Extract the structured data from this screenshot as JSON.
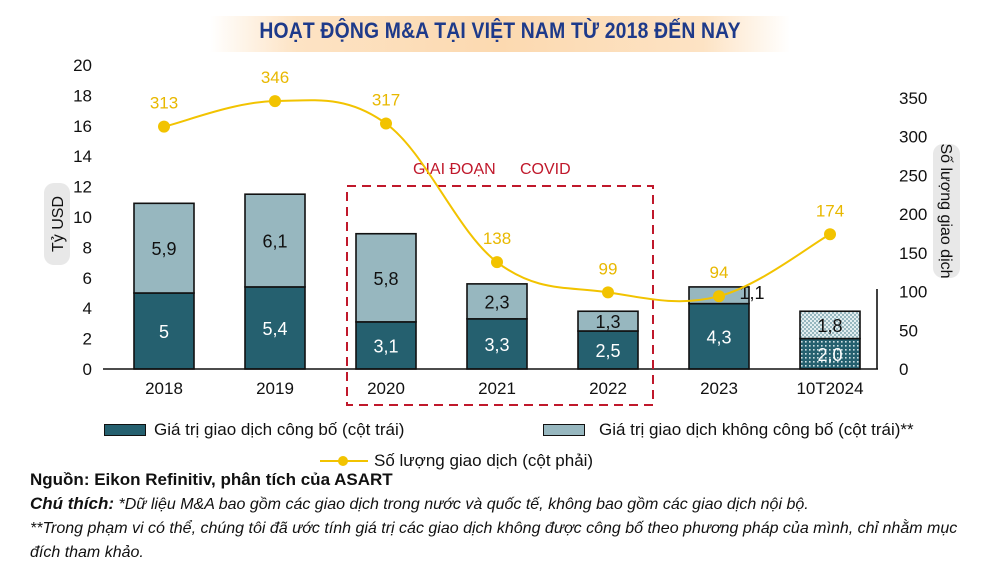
{
  "title": "HOẠT ĐỘNG M&A TẠI VIỆT NAM TỪ 2018 ĐẾN NAY",
  "annotation": {
    "word1": "GIAI ĐOẠN",
    "word2": "COVID"
  },
  "legend": {
    "disclosed": "Giá trị giao dịch công bố (cột trái)",
    "undisclosed": "Giá trị giao dịch không công bố (cột trái)**",
    "count": "Số lượng giao dịch (cột phải)"
  },
  "notes": {
    "source": "Nguồn: Eikon Refinitiv, phân tích của ASART",
    "note_label": "Chú thích:",
    "note1": " *Dữ liệu M&A bao gồm các giao dịch trong nước và quốc tế, không bao gồm các giao dịch nội bộ.",
    "note2": "**Trong phạm vi có thể, chúng tôi đã ước tính giá trị các giao dịch không được công bố theo phương pháp của mình, chỉ nhằm mục đích tham khảo."
  },
  "colors": {
    "disclosed": "#25606f",
    "undisclosed": "#97b7bf",
    "line": "#f2c300",
    "covid_box": "#c0182b",
    "title": "#1e3a8a"
  },
  "chart_data": {
    "type": "bar",
    "title": "HOẠT ĐỘNG M&A TẠI VIỆT NAM TỪ 2018 ĐẾN NAY",
    "categories": [
      "2018",
      "2019",
      "2020",
      "2021",
      "2022",
      "2023",
      "10T2024"
    ],
    "series": [
      {
        "name": "Giá trị giao dịch công bố (cột trái)",
        "type": "stacked-bar",
        "axis": "left",
        "values": [
          5,
          5.4,
          3.1,
          3.3,
          2.5,
          4.3,
          2.0
        ],
        "labels": [
          "5",
          "5,4",
          "3,1",
          "3,3",
          "2,5",
          "4,3",
          "2,0"
        ]
      },
      {
        "name": "Giá trị giao dịch không công bố (cột trái)**",
        "type": "stacked-bar",
        "axis": "left",
        "values": [
          5.9,
          6.1,
          5.8,
          2.3,
          1.3,
          1.1,
          1.8
        ],
        "labels": [
          "5,9",
          "6,1",
          "5,8",
          "2,3",
          "1,3",
          "1,1",
          "1,8"
        ]
      },
      {
        "name": "Số lượng giao dịch (cột phải)",
        "type": "line",
        "axis": "right",
        "values": [
          313,
          346,
          317,
          138,
          99,
          94,
          174
        ],
        "labels": [
          "313",
          "346",
          "317",
          "138",
          "99",
          "94",
          "174"
        ]
      }
    ],
    "ylabel": "Tỷ USD",
    "ylabel_right": "Số lượng giao dịch",
    "ylim": [
      0,
      20
    ],
    "yticks": [
      "0",
      "2",
      "4",
      "6",
      "8",
      "10",
      "12",
      "14",
      "16",
      "18",
      "20"
    ],
    "ylim_right": [
      0,
      350
    ],
    "yticks_right": [
      "0",
      "50",
      "100",
      "150",
      "200",
      "250",
      "300",
      "350"
    ],
    "grid": false,
    "legend_position": "bottom",
    "annotations": [
      "GIAI ĐOẠN COVID (2020–2022, dashed box)"
    ],
    "hatched_categories": [
      "10T2024"
    ]
  }
}
